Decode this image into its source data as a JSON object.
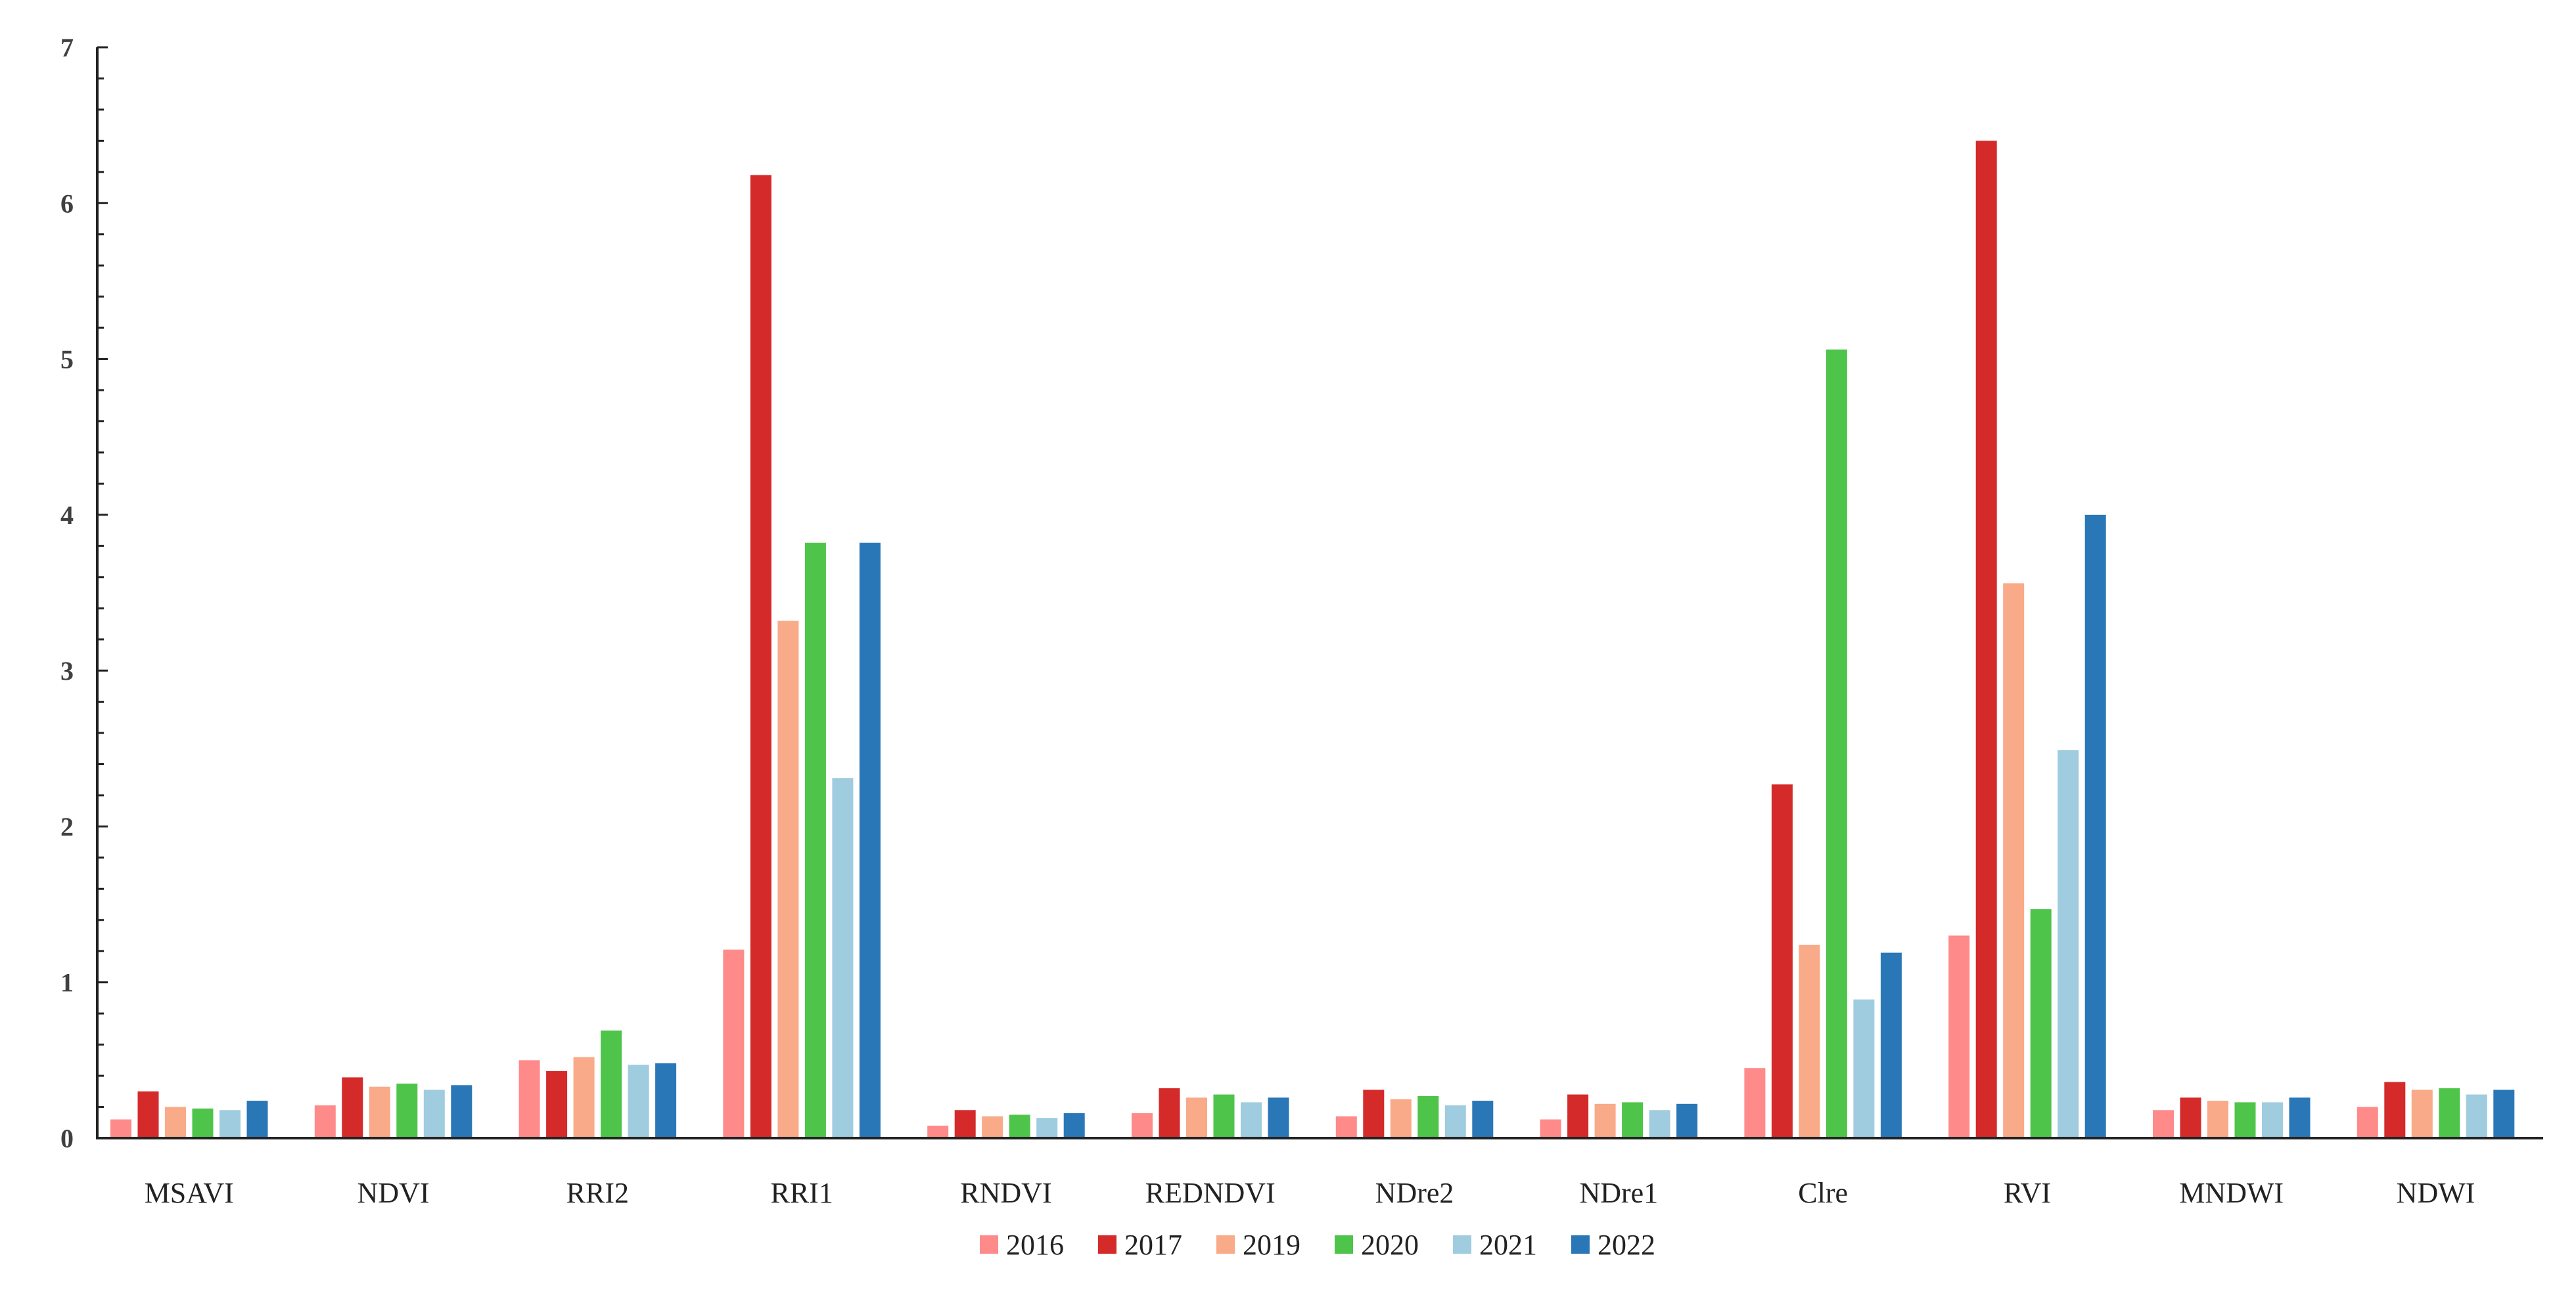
{
  "chart_data": {
    "type": "bar",
    "categories": [
      "MSAVI",
      "NDVI",
      "RRI2",
      "RRI1",
      "RNDVI",
      "REDNDVI",
      "NDre2",
      "NDre1",
      "Clre",
      "RVI",
      "MNDWI",
      "NDWI"
    ],
    "series": [
      {
        "name": "2016",
        "color": "#FF8A8A",
        "values": [
          0.12,
          0.21,
          0.5,
          1.21,
          0.08,
          0.16,
          0.14,
          0.12,
          0.45,
          1.3,
          0.18,
          0.2
        ]
      },
      {
        "name": "2017",
        "color": "#D42A2A",
        "values": [
          0.3,
          0.39,
          0.43,
          6.18,
          0.18,
          0.32,
          0.31,
          0.28,
          2.27,
          6.4,
          0.26,
          0.36
        ]
      },
      {
        "name": "2019",
        "color": "#F9AA88",
        "values": [
          0.2,
          0.33,
          0.52,
          3.32,
          0.14,
          0.26,
          0.25,
          0.22,
          1.24,
          3.56,
          0.24,
          0.31
        ]
      },
      {
        "name": "2020",
        "color": "#4FC44A",
        "values": [
          0.19,
          0.35,
          0.69,
          3.82,
          0.15,
          0.28,
          0.27,
          0.23,
          5.06,
          1.47,
          0.23,
          0.32
        ]
      },
      {
        "name": "2021",
        "color": "#9FCCDF",
        "values": [
          0.18,
          0.31,
          0.47,
          2.31,
          0.13,
          0.23,
          0.21,
          0.18,
          0.89,
          2.49,
          0.23,
          0.28
        ]
      },
      {
        "name": "2022",
        "color": "#2A77B8",
        "values": [
          0.24,
          0.34,
          0.48,
          3.82,
          0.16,
          0.26,
          0.24,
          0.22,
          1.19,
          4.0,
          0.26,
          0.31
        ]
      }
    ],
    "yticks": [
      "0",
      "1",
      "2",
      "3",
      "4",
      "5",
      "6",
      "7"
    ],
    "ylim": [
      0,
      7
    ],
    "minor_ticks_per_major": 5,
    "grid": false,
    "legend": "bottom-center"
  }
}
